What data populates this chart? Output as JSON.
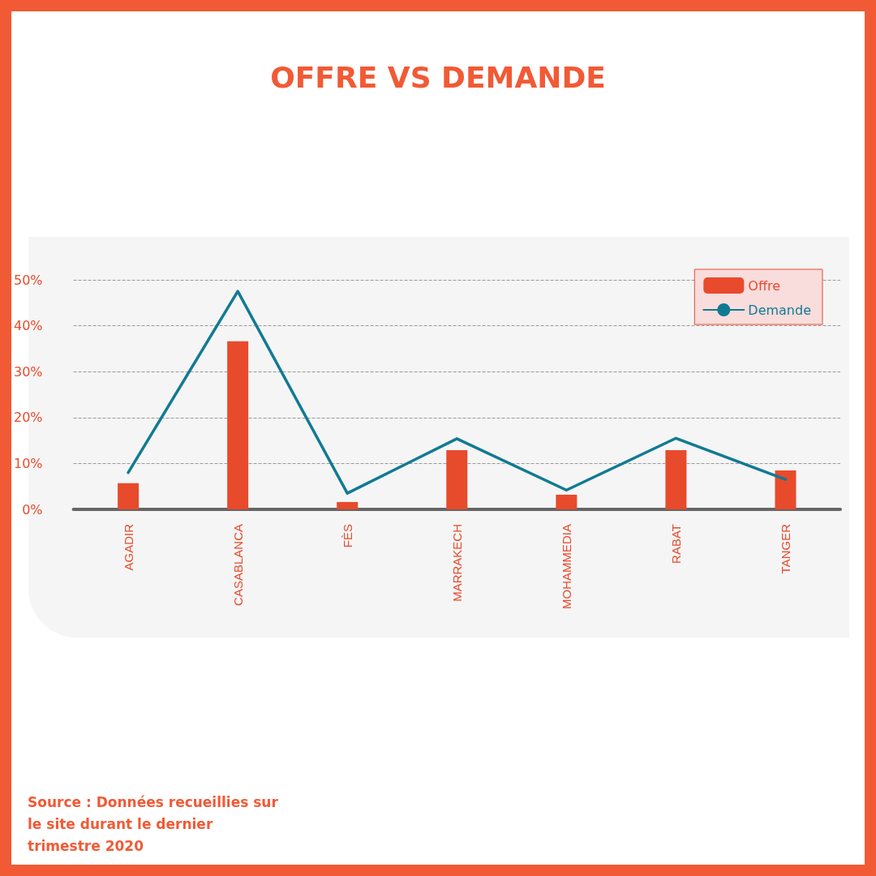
{
  "chart_data": {
    "type": "bar",
    "title": "OFFRE VS DEMANDE",
    "categories": [
      "AGADIR",
      "CASABLANCA",
      "FÈS",
      "MARRAKECH",
      "MOHAMMEDIA",
      "RABAT",
      "TANGER"
    ],
    "series": [
      {
        "name": "Offre",
        "color": "#e84a2c",
        "values": [
          5.7,
          36.6,
          1.6,
          12.9,
          3.2,
          12.9,
          8.5
        ]
      },
      {
        "name": "Demande",
        "type": "line",
        "color": "#117a93",
        "values": [
          8.0,
          47.5,
          3.5,
          15.4,
          4.2,
          15.5,
          6.5
        ]
      }
    ],
    "ylim": [
      0,
      50
    ],
    "yticks": [
      {
        "value": 0,
        "label": "0%"
      },
      {
        "value": 10,
        "label": "10%"
      },
      {
        "value": 20,
        "label": "20%"
      },
      {
        "value": 30,
        "label": "30%"
      },
      {
        "value": 40,
        "label": "40%"
      },
      {
        "value": 50,
        "label": "50%"
      }
    ],
    "grid": "y",
    "legend": "top right",
    "marker": "none",
    "line_style": "solid",
    "annotations": [
      "Source : Données recueillies sur le site durant le dernier trimestre 2020"
    ]
  }
}
